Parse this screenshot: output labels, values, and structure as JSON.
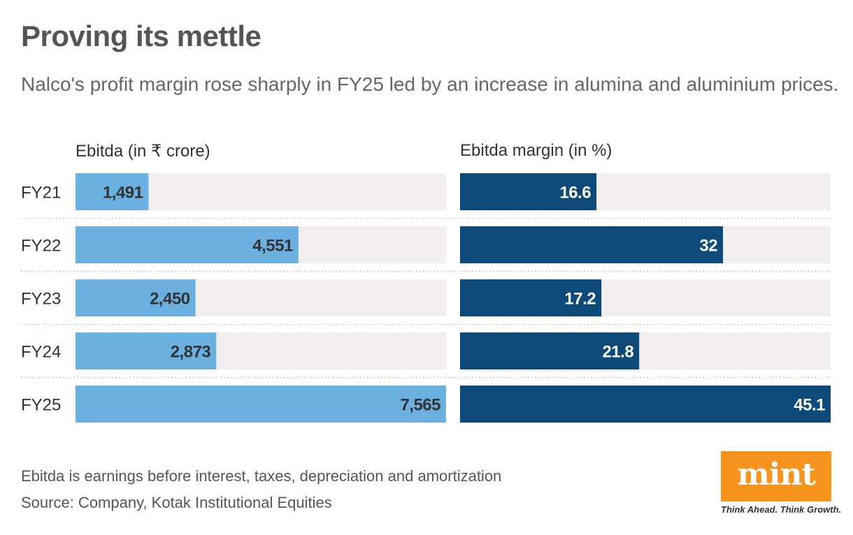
{
  "title": "Proving its mettle",
  "subtitle": "Nalco's profit margin rose sharply in FY25 led by an increase in alumina and aluminium prices.",
  "footnote": "Ebitda is earnings before interest, taxes, depreciation and amortization",
  "source": "Source: Company, Kotak Institutional Equities",
  "logo": {
    "text": "mint",
    "tagline": "Think Ahead. Think Growth."
  },
  "colors": {
    "ebitda_bar": "#6bb0e0",
    "margin_bar": "#0d4a7a",
    "track": "#f3eeee",
    "ebitda_label": "#333333",
    "margin_label": "#ffffff",
    "divider": "#c8c8c8"
  },
  "chart_data": {
    "type": "bar",
    "orientation": "horizontal",
    "categories": [
      "FY21",
      "FY22",
      "FY23",
      "FY24",
      "FY25"
    ],
    "series": [
      {
        "name": "Ebitda (in ₹ crore)",
        "values": [
          1491,
          4551,
          2450,
          2873,
          7565
        ],
        "labels": [
          "1,491",
          "4,551",
          "2,450",
          "2,873",
          "7,565"
        ],
        "xlim": [
          0,
          7565
        ]
      },
      {
        "name": "Ebitda margin (in %)",
        "values": [
          16.6,
          32,
          17.2,
          21.8,
          45.1
        ],
        "labels": [
          "16.6",
          "32",
          "17.2",
          "21.8",
          "45.1"
        ],
        "xlim": [
          0,
          45.1
        ]
      }
    ]
  }
}
